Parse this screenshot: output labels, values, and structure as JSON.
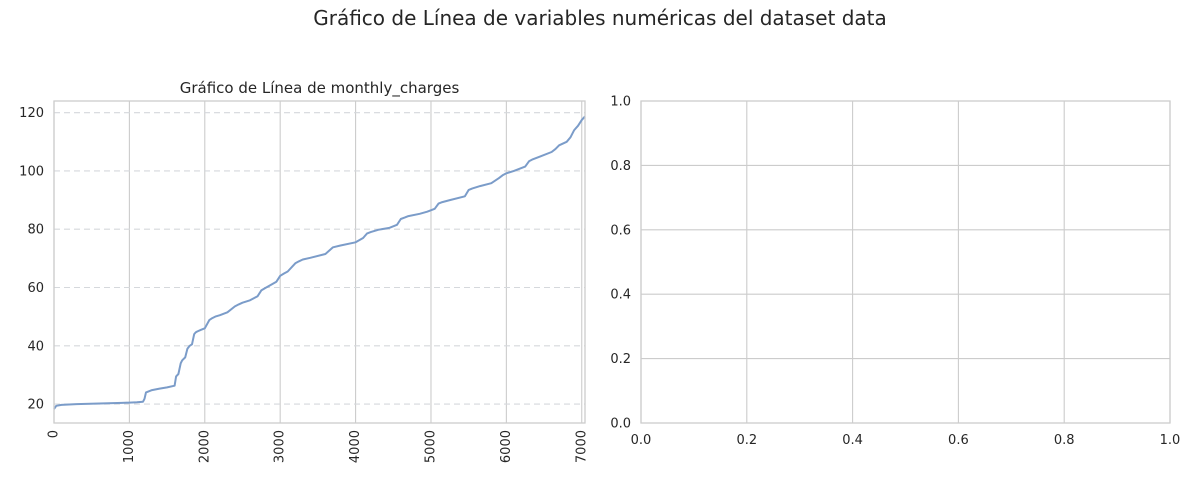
{
  "figure": {
    "suptitle": "Gráfico de Línea de variables numéricas del dataset data"
  },
  "chart_data": [
    {
      "type": "line",
      "title": "Gráfico de Línea de monthly_charges",
      "xlabel": "",
      "ylabel": "",
      "xlim": [
        0,
        7043
      ],
      "ylim": [
        13.5,
        124.0
      ],
      "xticks": [
        0,
        1000,
        2000,
        3000,
        4000,
        5000,
        6000,
        7000
      ],
      "xtick_labels": [
        "0",
        "1000",
        "2000",
        "3000",
        "4000",
        "5000",
        "6000",
        "7000"
      ],
      "xtick_rotation": 90,
      "yticks": [
        20,
        40,
        60,
        80,
        100,
        120
      ],
      "ytick_labels": [
        "20",
        "40",
        "60",
        "80",
        "100",
        "120"
      ],
      "grid": {
        "x": "solid",
        "y": "dashed"
      },
      "line_color": "#7b9cc9",
      "series": [
        {
          "name": "",
          "x": [
            0,
            30,
            100,
            300,
            600,
            900,
            1100,
            1180,
            1200,
            1220,
            1300,
            1400,
            1500,
            1600,
            1620,
            1650,
            1680,
            1700,
            1740,
            1770,
            1800,
            1830,
            1860,
            1880,
            1900,
            1950,
            2000,
            2060,
            2100,
            2140,
            2200,
            2300,
            2400,
            2450,
            2500,
            2600,
            2700,
            2750,
            2800,
            2850,
            2950,
            3000,
            3050,
            3100,
            3200,
            3250,
            3300,
            3400,
            3600,
            3700,
            3800,
            4000,
            4100,
            4150,
            4200,
            4300,
            4450,
            4550,
            4600,
            4650,
            4700,
            4850,
            4950,
            5050,
            5100,
            5150,
            5250,
            5450,
            5500,
            5550,
            5650,
            5800,
            5900,
            5950,
            6000,
            6100,
            6250,
            6300,
            6350,
            6450,
            6600,
            6650,
            6700,
            6800,
            6850,
            6900,
            6950,
            7000,
            7043
          ],
          "values": [
            18.3,
            19.4,
            19.7,
            20.0,
            20.2,
            20.4,
            20.6,
            20.8,
            21.8,
            24.0,
            24.8,
            25.3,
            25.7,
            26.3,
            29.5,
            30.3,
            34.0,
            35.0,
            36.0,
            39.0,
            40.0,
            40.5,
            44.0,
            44.6,
            44.9,
            45.5,
            46.0,
            48.8,
            49.5,
            50.0,
            50.5,
            51.5,
            53.5,
            54.2,
            54.8,
            55.6,
            57.0,
            59.0,
            59.8,
            60.5,
            62.0,
            64.0,
            64.8,
            65.5,
            68.3,
            69.0,
            69.6,
            70.2,
            71.5,
            73.8,
            74.4,
            75.5,
            77.0,
            78.5,
            79.0,
            79.8,
            80.5,
            81.5,
            83.5,
            84.0,
            84.5,
            85.3,
            86.0,
            87.0,
            88.8,
            89.3,
            90.0,
            91.3,
            93.5,
            94.0,
            94.8,
            95.8,
            97.5,
            98.5,
            99.2,
            100.0,
            101.5,
            103.3,
            104.0,
            105.0,
            106.5,
            107.5,
            108.8,
            110.0,
            111.5,
            114.0,
            115.5,
            117.5,
            118.7
          ]
        }
      ]
    },
    {
      "type": "line",
      "title": "",
      "xlabel": "",
      "ylabel": "",
      "xlim": [
        0.0,
        1.0
      ],
      "ylim": [
        0.0,
        1.0
      ],
      "xticks": [
        0.0,
        0.2,
        0.4,
        0.6,
        0.8,
        1.0
      ],
      "xtick_labels": [
        "0.0",
        "0.2",
        "0.4",
        "0.6",
        "0.8",
        "1.0"
      ],
      "yticks": [
        0.0,
        0.2,
        0.4,
        0.6,
        0.8,
        1.0
      ],
      "ytick_labels": [
        "0.0",
        "0.2",
        "0.4",
        "0.6",
        "0.8",
        "1.0"
      ],
      "grid": {
        "x": "solid",
        "y": "solid"
      },
      "series": []
    }
  ]
}
